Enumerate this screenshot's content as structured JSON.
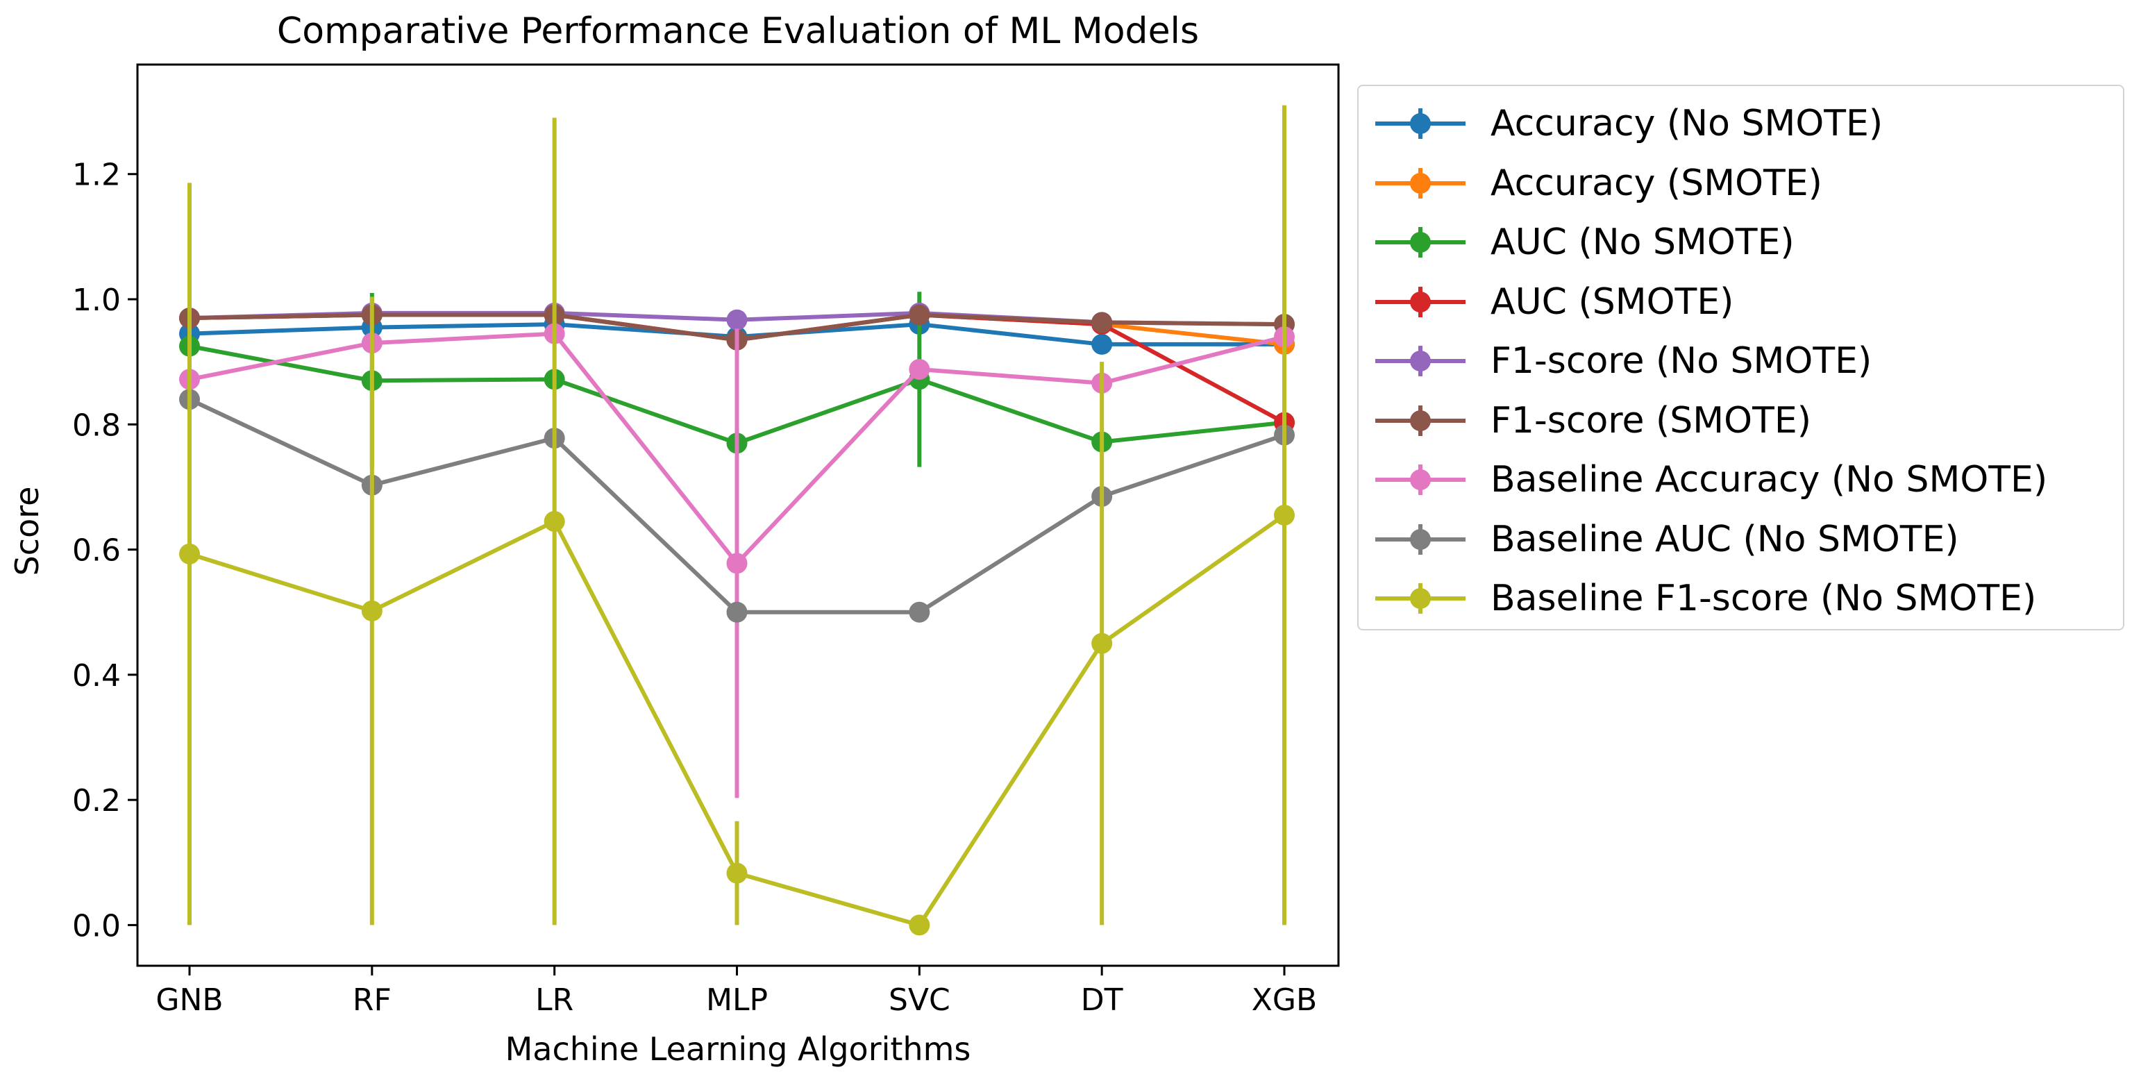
{
  "chart_data": {
    "type": "line",
    "title": "Comparative Performance Evaluation of ML Models",
    "xlabel": "Machine Learning Algorithms",
    "ylabel": "Score",
    "categories": [
      "GNB",
      "RF",
      "LR",
      "MLP",
      "SVC",
      "DT",
      "XGB"
    ],
    "ylim": [
      -0.065,
      1.375
    ],
    "yticks": [
      0.0,
      0.2,
      0.4,
      0.6,
      0.8,
      1.0,
      1.2
    ],
    "ytick_labels": [
      "0.0",
      "0.2",
      "0.4",
      "0.6",
      "0.8",
      "1.0",
      "1.2"
    ],
    "grid": false,
    "legend_position": "outside-right",
    "series": [
      {
        "name": "Accuracy (No SMOTE)",
        "color": "#1f77b4",
        "values": [
          0.945,
          0.955,
          0.96,
          0.94,
          0.96,
          0.928,
          0.928
        ],
        "errors": [
          0,
          0,
          0,
          0,
          0,
          0,
          0
        ]
      },
      {
        "name": "Accuracy (SMOTE)",
        "color": "#ff7f0e",
        "values": [
          0.97,
          0.975,
          0.975,
          0.935,
          0.975,
          0.96,
          0.928
        ],
        "errors": [
          0,
          0,
          0,
          0,
          0,
          0,
          0
        ]
      },
      {
        "name": "AUC (No SMOTE)",
        "color": "#2ca02c",
        "values": [
          0.925,
          0.87,
          0.872,
          0.77,
          0.872,
          0.772,
          0.803
        ],
        "errors": [
          0,
          0.14,
          0,
          0,
          0.14,
          0,
          0
        ]
      },
      {
        "name": "AUC (SMOTE)",
        "color": "#d62728",
        "values": [
          0.97,
          0.975,
          0.975,
          0.935,
          0.975,
          0.96,
          0.803
        ],
        "errors": [
          0,
          0,
          0,
          0,
          0,
          0,
          0
        ]
      },
      {
        "name": "F1-score (No SMOTE)",
        "color": "#9467bd",
        "values": [
          0.97,
          0.978,
          0.978,
          0.967,
          0.978,
          0.963,
          0.96
        ],
        "errors": [
          0,
          0,
          0,
          0,
          0,
          0,
          0
        ]
      },
      {
        "name": "F1-score (SMOTE)",
        "color": "#8c564b",
        "values": [
          0.97,
          0.975,
          0.975,
          0.935,
          0.975,
          0.963,
          0.96
        ],
        "errors": [
          0,
          0,
          0,
          0,
          0,
          0,
          0
        ]
      },
      {
        "name": "Baseline Accuracy (No SMOTE)",
        "color": "#e377c2",
        "values": [
          0.872,
          0.93,
          0.945,
          0.578,
          0.888,
          0.866,
          0.94
        ],
        "errors": [
          0,
          0,
          0,
          0.375,
          0,
          0,
          0
        ]
      },
      {
        "name": "Baseline AUC (No SMOTE)",
        "color": "#7f7f7f",
        "values": [
          0.84,
          0.703,
          0.778,
          0.5,
          0.5,
          0.685,
          0.783
        ],
        "errors": [
          0,
          0,
          0,
          0,
          0,
          0,
          0
        ]
      },
      {
        "name": "Baseline F1-score (No SMOTE)",
        "color": "#bcbd22",
        "values": [
          0.593,
          0.502,
          0.645,
          0.083,
          0.0,
          0.45,
          0.655
        ],
        "errors": [
          0.593,
          0.502,
          0.645,
          0.083,
          0,
          0.45,
          0.655
        ],
        "errors_up": [
          0.593,
          0.502,
          0.645,
          0.083,
          0,
          0.45,
          0.655
        ]
      }
    ]
  }
}
